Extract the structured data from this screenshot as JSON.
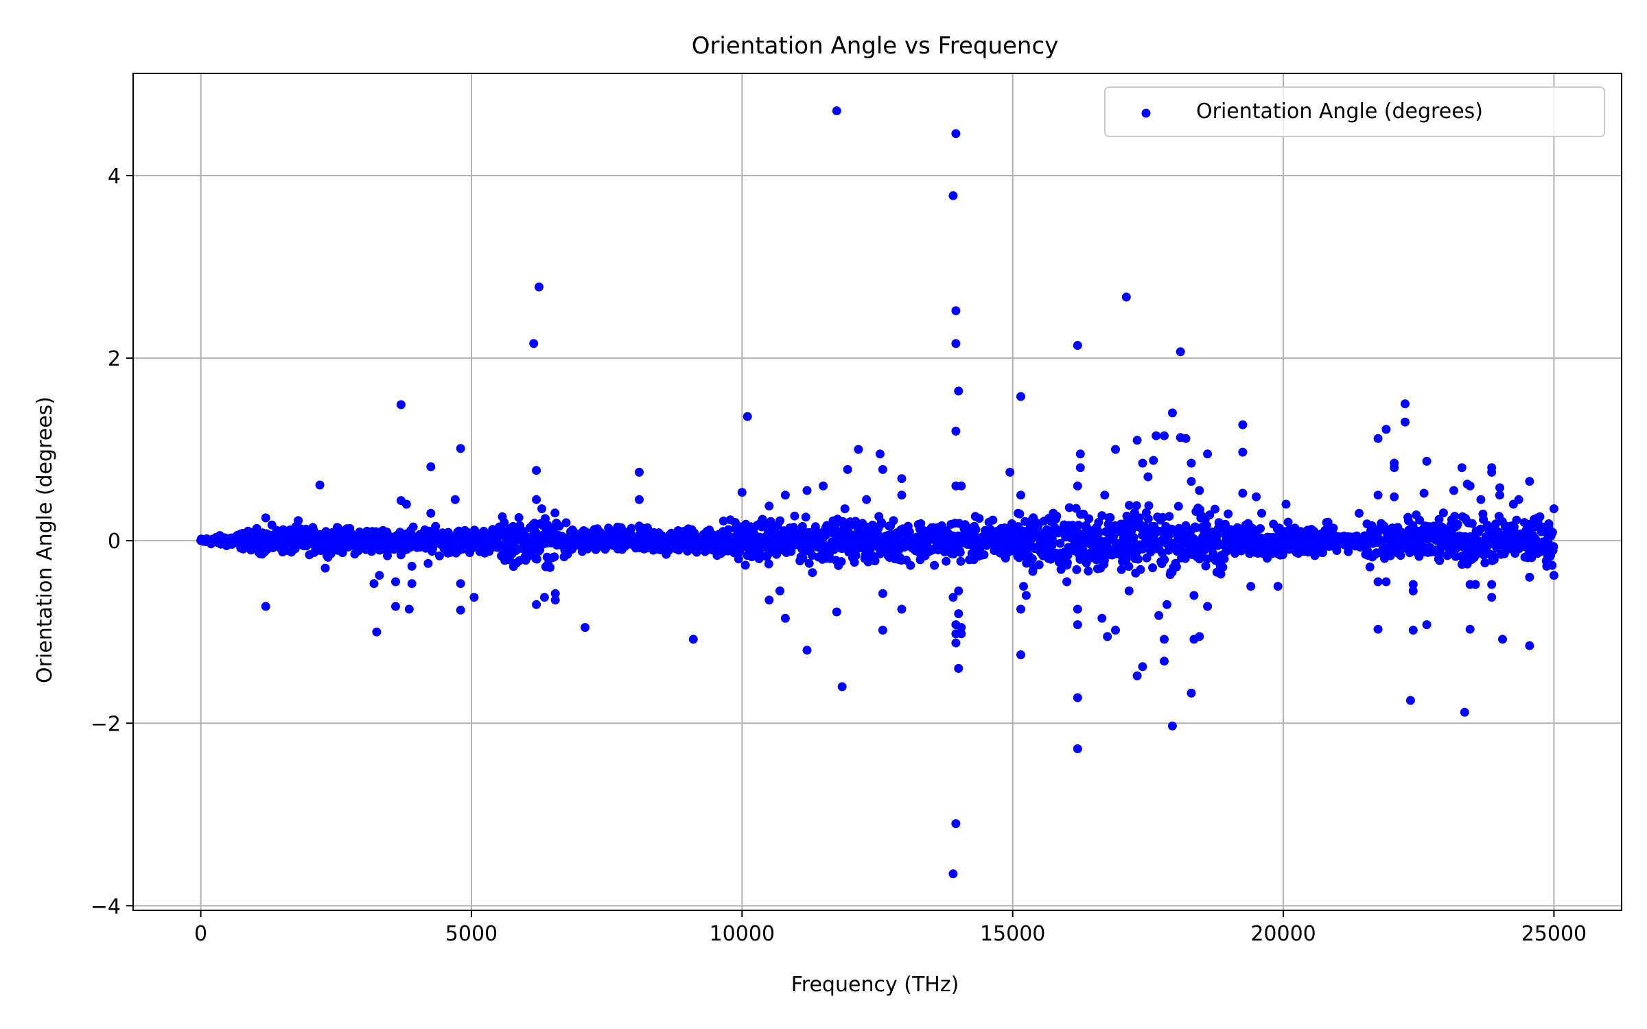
{
  "chart_data": {
    "type": "scatter",
    "title": "Orientation Angle vs Frequency",
    "xlabel": "Frequency (THz)",
    "ylabel": "Orientation Angle (degrees)",
    "xlim": [
      -1250,
      26250
    ],
    "ylim": [
      -4.05,
      5.12
    ],
    "xticks": [
      0,
      5000,
      10000,
      15000,
      20000,
      25000
    ],
    "xtick_labels": [
      "0",
      "5000",
      "10000",
      "15000",
      "20000",
      "25000"
    ],
    "yticks": [
      -4,
      -2,
      0,
      2,
      4
    ],
    "ytick_labels": [
      "−4",
      "−2",
      "0",
      "2",
      "4"
    ],
    "grid": true,
    "legend": {
      "position": "top-right",
      "entries": [
        "Orientation Angle (degrees)"
      ]
    },
    "colors": {
      "marker": "#0000ff",
      "grid": "#b0b0b0",
      "axes": "#000000"
    },
    "series": [
      {
        "name": "Orientation Angle (degrees)",
        "color": "#0000ff",
        "points": [
          [
            11750,
            4.71
          ],
          [
            13950,
            4.46
          ],
          [
            13900,
            3.78
          ],
          [
            13950,
            2.52
          ],
          [
            13950,
            2.16
          ],
          [
            14000,
            1.64
          ],
          [
            13950,
            1.2
          ],
          [
            13950,
            0.6
          ],
          [
            14050,
            0.6
          ],
          [
            13900,
            -0.62
          ],
          [
            14000,
            -0.55
          ],
          [
            14000,
            -0.8
          ],
          [
            13950,
            -0.92
          ],
          [
            14050,
            -0.95
          ],
          [
            13950,
            -1.02
          ],
          [
            14050,
            -1.02
          ],
          [
            13950,
            -1.12
          ],
          [
            14000,
            -1.4
          ],
          [
            13950,
            -3.1
          ],
          [
            13900,
            -3.65
          ],
          [
            6250,
            2.78
          ],
          [
            6150,
            2.16
          ],
          [
            6200,
            0.77
          ],
          [
            6200,
            0.45
          ],
          [
            6300,
            0.35
          ],
          [
            6350,
            -0.62
          ],
          [
            6200,
            -0.7
          ],
          [
            6550,
            -0.58
          ],
          [
            6550,
            -0.65
          ],
          [
            3700,
            1.49
          ],
          [
            3700,
            0.44
          ],
          [
            3800,
            0.4
          ],
          [
            3900,
            -0.28
          ],
          [
            3600,
            -0.45
          ],
          [
            3900,
            -0.47
          ],
          [
            3600,
            -0.72
          ],
          [
            3850,
            -0.75
          ],
          [
            3250,
            -1.0
          ],
          [
            3200,
            -0.47
          ],
          [
            3300,
            -0.38
          ],
          [
            4250,
            0.81
          ],
          [
            4250,
            0.3
          ],
          [
            4800,
            1.01
          ],
          [
            4700,
            0.45
          ],
          [
            4800,
            -0.47
          ],
          [
            4800,
            -0.76
          ],
          [
            5050,
            -0.62
          ],
          [
            4200,
            -0.25
          ],
          [
            2200,
            0.61
          ],
          [
            1200,
            0.25
          ],
          [
            1200,
            -0.72
          ],
          [
            2300,
            -0.3
          ],
          [
            1800,
            0.22
          ],
          [
            7100,
            -0.95
          ],
          [
            8100,
            0.75
          ],
          [
            8100,
            0.45
          ],
          [
            9100,
            -1.08
          ],
          [
            7700,
            0.15
          ],
          [
            8600,
            -0.15
          ],
          [
            10100,
            1.36
          ],
          [
            10000,
            0.53
          ],
          [
            10500,
            0.38
          ],
          [
            10700,
            -0.55
          ],
          [
            10800,
            -0.85
          ],
          [
            10500,
            -0.65
          ],
          [
            11200,
            -1.2
          ],
          [
            10800,
            0.5
          ],
          [
            11200,
            0.55
          ],
          [
            11500,
            0.6
          ],
          [
            11750,
            -0.78
          ],
          [
            11850,
            -1.6
          ],
          [
            11950,
            0.78
          ],
          [
            12150,
            1.0
          ],
          [
            12550,
            0.95
          ],
          [
            12600,
            0.78
          ],
          [
            12600,
            -0.58
          ],
          [
            12600,
            -0.98
          ],
          [
            12950,
            0.68
          ],
          [
            12950,
            0.5
          ],
          [
            12950,
            -0.75
          ],
          [
            11900,
            0.35
          ],
          [
            12300,
            0.45
          ],
          [
            11300,
            -0.35
          ],
          [
            15150,
            1.58
          ],
          [
            14950,
            0.75
          ],
          [
            15150,
            0.5
          ],
          [
            15200,
            -0.5
          ],
          [
            15150,
            -0.75
          ],
          [
            15150,
            -1.25
          ],
          [
            15250,
            -0.6
          ],
          [
            15100,
            0.3
          ],
          [
            16200,
            2.14
          ],
          [
            16250,
            0.95
          ],
          [
            16250,
            0.8
          ],
          [
            16200,
            0.6
          ],
          [
            16200,
            -0.75
          ],
          [
            16200,
            -0.92
          ],
          [
            16200,
            -1.72
          ],
          [
            16200,
            -2.28
          ],
          [
            16000,
            -0.45
          ],
          [
            16650,
            -0.85
          ],
          [
            16750,
            -1.05
          ],
          [
            16900,
            -0.98
          ],
          [
            16900,
            1.0
          ],
          [
            16700,
            0.5
          ],
          [
            17100,
            2.67
          ],
          [
            17150,
            -0.55
          ],
          [
            17300,
            1.1
          ],
          [
            17300,
            -1.48
          ],
          [
            17400,
            -1.38
          ],
          [
            17400,
            0.85
          ],
          [
            17500,
            0.7
          ],
          [
            17600,
            0.88
          ],
          [
            17650,
            1.15
          ],
          [
            17700,
            -0.82
          ],
          [
            17800,
            1.15
          ],
          [
            17800,
            -1.08
          ],
          [
            17800,
            -1.32
          ],
          [
            17850,
            -0.7
          ],
          [
            17950,
            1.4
          ],
          [
            17950,
            -2.03
          ],
          [
            18100,
            2.07
          ],
          [
            18100,
            1.13
          ],
          [
            18200,
            1.12
          ],
          [
            18300,
            0.85
          ],
          [
            18300,
            0.65
          ],
          [
            18300,
            -1.67
          ],
          [
            18350,
            -1.08
          ],
          [
            18450,
            -1.05
          ],
          [
            18350,
            -0.6
          ],
          [
            18600,
            0.95
          ],
          [
            18600,
            -0.72
          ],
          [
            18450,
            0.55
          ],
          [
            19250,
            1.27
          ],
          [
            19250,
            0.97
          ],
          [
            19250,
            0.52
          ],
          [
            19400,
            -0.5
          ],
          [
            19500,
            0.48
          ],
          [
            19900,
            -0.5
          ],
          [
            20050,
            0.4
          ],
          [
            19600,
            0.3
          ],
          [
            20800,
            0.2
          ],
          [
            21200,
            -0.12
          ],
          [
            21400,
            0.3
          ],
          [
            22250,
            1.5
          ],
          [
            22250,
            1.3
          ],
          [
            21900,
            1.22
          ],
          [
            21750,
            1.12
          ],
          [
            22050,
            0.85
          ],
          [
            22050,
            0.8
          ],
          [
            21750,
            0.5
          ],
          [
            22050,
            0.48
          ],
          [
            21750,
            -0.45
          ],
          [
            21900,
            -0.45
          ],
          [
            21750,
            -0.97
          ],
          [
            22400,
            -0.98
          ],
          [
            22650,
            -0.92
          ],
          [
            22350,
            -1.75
          ],
          [
            22650,
            0.87
          ],
          [
            22600,
            0.52
          ],
          [
            22400,
            -0.48
          ],
          [
            22400,
            -0.55
          ],
          [
            23150,
            0.55
          ],
          [
            23300,
            0.8
          ],
          [
            23400,
            0.62
          ],
          [
            23450,
            0.6
          ],
          [
            23450,
            -0.97
          ],
          [
            23450,
            -0.48
          ],
          [
            23550,
            -0.48
          ],
          [
            23350,
            -1.88
          ],
          [
            23650,
            0.45
          ],
          [
            23850,
            0.8
          ],
          [
            23850,
            0.75
          ],
          [
            24000,
            0.58
          ],
          [
            24000,
            0.5
          ],
          [
            23850,
            -0.48
          ],
          [
            23850,
            -0.62
          ],
          [
            24050,
            -1.08
          ],
          [
            24250,
            0.4
          ],
          [
            24350,
            0.45
          ],
          [
            24550,
            0.65
          ],
          [
            24550,
            -0.4
          ],
          [
            24550,
            -1.15
          ],
          [
            25000,
            0.35
          ],
          [
            25000,
            -0.38
          ],
          [
            24700,
            0.25
          ],
          [
            24900,
            0.15
          ]
        ]
      }
    ]
  }
}
